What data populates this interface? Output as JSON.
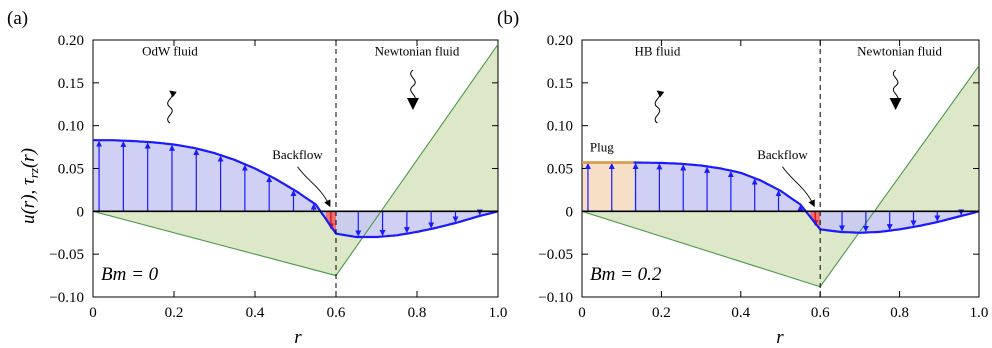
{
  "figure": {
    "ylabel": "u(r), τrz(r)",
    "xlabel": "r",
    "colors": {
      "velocity": "#1a1aff",
      "velocity_fill": "#c8c8f2",
      "stress_line": "#4a9a4a",
      "stress_fill": "#dde8c9",
      "backflow_fill": "#ee7070",
      "backflow_arrow": "#d01010",
      "plug_line": "#e0a040",
      "plug_fill": "#f6dfc4"
    }
  },
  "chart_data": [
    {
      "type": "area",
      "panel_label": "(a)",
      "annotation_bm": "Bm = 0",
      "xlim": [
        0,
        1
      ],
      "ylim": [
        -0.1,
        0.2
      ],
      "x_ticks": [
        0,
        0.2,
        0.4,
        0.6,
        0.8,
        1.0
      ],
      "x_tick_labels": [
        "0",
        "0.2",
        "0.4",
        "0.6",
        "0.8",
        "1.0"
      ],
      "y_ticks": [
        -0.1,
        -0.05,
        0,
        0.05,
        0.1,
        0.15,
        0.2
      ],
      "y_tick_labels": [
        "−0.10",
        "−0.05",
        "0",
        "0.05",
        "0.10",
        "0.15",
        "0.20"
      ],
      "interface_r": 0.6,
      "velocity": {
        "x": [
          0,
          0.05,
          0.1,
          0.15,
          0.2,
          0.25,
          0.3,
          0.35,
          0.4,
          0.45,
          0.5,
          0.55,
          0.6,
          0.65,
          0.7,
          0.75,
          0.8,
          0.85,
          0.9,
          0.95,
          1.0
        ],
        "y": [
          0.083,
          0.083,
          0.082,
          0.0805,
          0.078,
          0.074,
          0.068,
          0.06,
          0.05,
          0.038,
          0.024,
          0.008,
          -0.026,
          -0.03,
          -0.03,
          -0.028,
          -0.024,
          -0.019,
          -0.013,
          -0.006,
          0
        ]
      },
      "stress": {
        "x": [
          0,
          0.6,
          0.6,
          1.0
        ],
        "y": [
          0,
          -0.075,
          -0.075,
          0.195
        ]
      },
      "stress_zero_crossing_r": 0.71,
      "arrow_r": [
        0.015,
        0.075,
        0.135,
        0.195,
        0.255,
        0.315,
        0.375,
        0.435,
        0.495,
        0.545,
        0.655,
        0.715,
        0.775,
        0.835,
        0.895,
        0.955
      ],
      "backflow_range": [
        0.575,
        0.6
      ],
      "annotations": {
        "left_fluid": "OdW fluid",
        "right_fluid": "Newtonian fluid",
        "backflow": "Backflow"
      }
    },
    {
      "type": "area",
      "panel_label": "(b)",
      "annotation_bm": "Bm = 0.2",
      "xlim": [
        0,
        1
      ],
      "ylim": [
        -0.1,
        0.2
      ],
      "x_ticks": [
        0,
        0.2,
        0.4,
        0.6,
        0.8,
        1.0
      ],
      "x_tick_labels": [
        "0",
        "0.2",
        "0.4",
        "0.6",
        "0.8",
        "1.0"
      ],
      "y_ticks": [
        -0.1,
        -0.05,
        0,
        0.05,
        0.1,
        0.15,
        0.2
      ],
      "y_tick_labels": [
        "−0.10",
        "−0.05",
        "0",
        "0.05",
        "0.10",
        "0.15",
        "0.20"
      ],
      "interface_r": 0.6,
      "plug_r": 0.13,
      "plug_u": 0.057,
      "velocity": {
        "x": [
          0,
          0.05,
          0.1,
          0.13,
          0.2,
          0.25,
          0.3,
          0.35,
          0.4,
          0.45,
          0.5,
          0.55,
          0.6,
          0.65,
          0.7,
          0.75,
          0.8,
          0.85,
          0.9,
          0.95,
          1.0
        ],
        "y": [
          0.057,
          0.057,
          0.057,
          0.057,
          0.0565,
          0.0555,
          0.0535,
          0.05,
          0.045,
          0.036,
          0.024,
          0.008,
          -0.021,
          -0.024,
          -0.025,
          -0.024,
          -0.021,
          -0.017,
          -0.012,
          -0.006,
          0
        ]
      },
      "stress": {
        "x": [
          0,
          0.6,
          0.6,
          1.0
        ],
        "y": [
          0,
          -0.088,
          -0.088,
          0.17
        ]
      },
      "stress_zero_crossing_r": 0.73,
      "arrow_r": [
        0.015,
        0.075,
        0.135,
        0.195,
        0.255,
        0.315,
        0.375,
        0.435,
        0.495,
        0.55,
        0.655,
        0.715,
        0.775,
        0.835,
        0.895,
        0.955
      ],
      "backflow_range": [
        0.575,
        0.6
      ],
      "annotations": {
        "left_fluid": "HB fluid",
        "right_fluid": "Newtonian fluid",
        "backflow": "Backflow",
        "plug": "Plug"
      }
    }
  ]
}
